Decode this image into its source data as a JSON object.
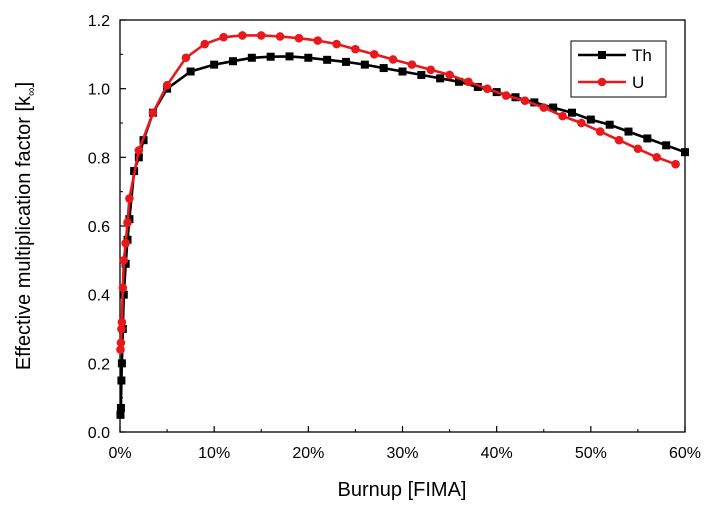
{
  "chart_data": {
    "type": "line",
    "xlabel": "Burnup [FIMA]",
    "ylabel": "Effective multiplication factor [k",
    "ylabel_subscript": "∞",
    "ylabel_close": "]",
    "xlim": [
      0,
      0.6
    ],
    "ylim": [
      0,
      1.2
    ],
    "x_ticks": [
      0,
      0.1,
      0.2,
      0.3,
      0.4,
      0.5,
      0.6
    ],
    "x_tick_labels": [
      "0%",
      "10%",
      "20%",
      "30%",
      "40%",
      "50%",
      "60%"
    ],
    "y_ticks": [
      0,
      0.2,
      0.4,
      0.6,
      0.8,
      1.0,
      1.2
    ],
    "y_tick_labels": [
      "0.0",
      "0.2",
      "0.4",
      "0.6",
      "0.8",
      "1.0",
      "1.2"
    ],
    "grid": false,
    "legend_position": "top-right",
    "series": [
      {
        "name": "Th",
        "color": "#000000",
        "marker": "square",
        "x": [
          0.0005,
          0.001,
          0.0015,
          0.002,
          0.003,
          0.004,
          0.006,
          0.008,
          0.01,
          0.015,
          0.02,
          0.025,
          0.035,
          0.05,
          0.075,
          0.1,
          0.12,
          0.14,
          0.16,
          0.18,
          0.2,
          0.22,
          0.24,
          0.26,
          0.28,
          0.3,
          0.32,
          0.34,
          0.36,
          0.38,
          0.4,
          0.42,
          0.44,
          0.46,
          0.48,
          0.5,
          0.52,
          0.54,
          0.56,
          0.58,
          0.6
        ],
        "y": [
          0.05,
          0.07,
          0.15,
          0.2,
          0.3,
          0.4,
          0.49,
          0.56,
          0.62,
          0.76,
          0.8,
          0.85,
          0.93,
          1.0,
          1.05,
          1.07,
          1.08,
          1.09,
          1.093,
          1.094,
          1.09,
          1.084,
          1.078,
          1.07,
          1.06,
          1.05,
          1.04,
          1.03,
          1.02,
          1.005,
          0.99,
          0.975,
          0.96,
          0.945,
          0.93,
          0.91,
          0.895,
          0.875,
          0.855,
          0.835,
          0.815
        ]
      },
      {
        "name": "U",
        "color": "#e8191c",
        "marker": "circle",
        "x": [
          0.0005,
          0.001,
          0.0015,
          0.002,
          0.003,
          0.004,
          0.006,
          0.008,
          0.01,
          0.02,
          0.035,
          0.05,
          0.07,
          0.09,
          0.11,
          0.13,
          0.15,
          0.17,
          0.19,
          0.21,
          0.23,
          0.25,
          0.27,
          0.29,
          0.31,
          0.33,
          0.35,
          0.37,
          0.39,
          0.41,
          0.43,
          0.45,
          0.47,
          0.49,
          0.51,
          0.53,
          0.55,
          0.57,
          0.59
        ],
        "y": [
          0.24,
          0.26,
          0.3,
          0.32,
          0.42,
          0.5,
          0.55,
          0.61,
          0.68,
          0.82,
          0.93,
          1.01,
          1.09,
          1.13,
          1.15,
          1.155,
          1.155,
          1.152,
          1.147,
          1.14,
          1.13,
          1.115,
          1.1,
          1.085,
          1.07,
          1.055,
          1.04,
          1.02,
          1.0,
          0.98,
          0.965,
          0.945,
          0.92,
          0.9,
          0.875,
          0.85,
          0.825,
          0.8,
          0.78
        ]
      }
    ]
  }
}
